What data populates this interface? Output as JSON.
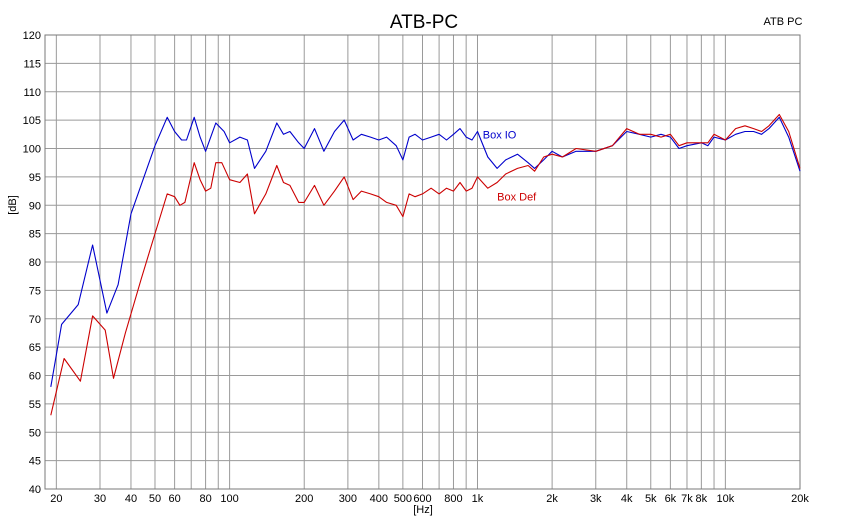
{
  "chart_data": {
    "type": "line",
    "title": "ATB-PC",
    "corner_label": "ATB PC",
    "xlabel": "[Hz]",
    "ylabel": "[dB]",
    "x_scale": "log",
    "xlim": [
      18,
      20000
    ],
    "ylim": [
      40,
      120
    ],
    "grid": true,
    "x_ticks": [
      {
        "v": 20,
        "label": "20"
      },
      {
        "v": 30,
        "label": "30"
      },
      {
        "v": 40,
        "label": "40"
      },
      {
        "v": 50,
        "label": "50"
      },
      {
        "v": 60,
        "label": "60"
      },
      {
        "v": 80,
        "label": "80"
      },
      {
        "v": 100,
        "label": "100"
      },
      {
        "v": 200,
        "label": "200"
      },
      {
        "v": 300,
        "label": "300"
      },
      {
        "v": 400,
        "label": "400"
      },
      {
        "v": 500,
        "label": "500"
      },
      {
        "v": 600,
        "label": "600"
      },
      {
        "v": 800,
        "label": "800"
      },
      {
        "v": 1000,
        "label": "1k"
      },
      {
        "v": 2000,
        "label": "2k"
      },
      {
        "v": 3000,
        "label": "3k"
      },
      {
        "v": 4000,
        "label": "4k"
      },
      {
        "v": 5000,
        "label": "5k"
      },
      {
        "v": 6000,
        "label": "6k"
      },
      {
        "v": 7000,
        "label": "7k"
      },
      {
        "v": 8000,
        "label": "8k"
      },
      {
        "v": 10000,
        "label": "10k"
      },
      {
        "v": 20000,
        "label": "20k"
      }
    ],
    "x_gridlines": [
      20,
      30,
      40,
      50,
      60,
      70,
      80,
      90,
      100,
      200,
      300,
      400,
      500,
      600,
      700,
      800,
      900,
      1000,
      2000,
      3000,
      4000,
      5000,
      6000,
      7000,
      8000,
      9000,
      10000,
      20000
    ],
    "y_ticks": [
      40,
      45,
      50,
      55,
      60,
      65,
      70,
      75,
      80,
      85,
      90,
      95,
      100,
      105,
      110,
      115,
      120
    ],
    "series": [
      {
        "name": "Box IO",
        "color": "#0000cc",
        "points": [
          [
            19,
            58
          ],
          [
            21,
            69
          ],
          [
            24.5,
            72.5
          ],
          [
            28,
            83
          ],
          [
            32,
            71
          ],
          [
            35.5,
            76
          ],
          [
            40,
            88.5
          ],
          [
            46,
            96
          ],
          [
            50,
            100.5
          ],
          [
            56,
            105.5
          ],
          [
            60,
            103
          ],
          [
            64,
            101.5
          ],
          [
            67,
            101.5
          ],
          [
            72,
            105.5
          ],
          [
            76,
            102
          ],
          [
            80,
            99.5
          ],
          [
            88,
            104.5
          ],
          [
            95,
            103
          ],
          [
            100,
            101
          ],
          [
            110,
            102
          ],
          [
            118,
            101.5
          ],
          [
            126,
            96.5
          ],
          [
            140,
            99.5
          ],
          [
            155,
            104.5
          ],
          [
            165,
            102.5
          ],
          [
            175,
            103
          ],
          [
            190,
            101
          ],
          [
            200,
            100
          ],
          [
            220,
            103.5
          ],
          [
            240,
            99.5
          ],
          [
            265,
            103
          ],
          [
            290,
            105
          ],
          [
            315,
            101.5
          ],
          [
            340,
            102.5
          ],
          [
            370,
            102
          ],
          [
            400,
            101.5
          ],
          [
            430,
            102
          ],
          [
            470,
            100.5
          ],
          [
            500,
            98
          ],
          [
            530,
            102
          ],
          [
            560,
            102.5
          ],
          [
            600,
            101.5
          ],
          [
            650,
            102
          ],
          [
            700,
            102.5
          ],
          [
            750,
            101.5
          ],
          [
            800,
            102.5
          ],
          [
            850,
            103.5
          ],
          [
            900,
            102
          ],
          [
            950,
            101.5
          ],
          [
            1000,
            103
          ],
          [
            1100,
            98.5
          ],
          [
            1200,
            96.5
          ],
          [
            1300,
            98
          ],
          [
            1450,
            99
          ],
          [
            1600,
            97.5
          ],
          [
            1700,
            96.5
          ],
          [
            1850,
            98
          ],
          [
            2000,
            99.5
          ],
          [
            2200,
            98.5
          ],
          [
            2500,
            99.5
          ],
          [
            3000,
            99.5
          ],
          [
            3500,
            100.5
          ],
          [
            4000,
            103
          ],
          [
            4500,
            102.5
          ],
          [
            5000,
            102
          ],
          [
            5500,
            102.5
          ],
          [
            6000,
            102
          ],
          [
            6500,
            100
          ],
          [
            7000,
            100.5
          ],
          [
            8000,
            101
          ],
          [
            8500,
            100.5
          ],
          [
            9000,
            102
          ],
          [
            10000,
            101.5
          ],
          [
            11000,
            102.5
          ],
          [
            12000,
            103
          ],
          [
            13000,
            103
          ],
          [
            14000,
            102.5
          ],
          [
            15000,
            103.5
          ],
          [
            16500,
            105.5
          ],
          [
            18000,
            102
          ],
          [
            20000,
            96
          ]
        ]
      },
      {
        "name": "Box Def",
        "color": "#cc0000",
        "points": [
          [
            19,
            53
          ],
          [
            21.5,
            63
          ],
          [
            25,
            59
          ],
          [
            28,
            70.5
          ],
          [
            31.5,
            68
          ],
          [
            34,
            59.5
          ],
          [
            38,
            67.5
          ],
          [
            44,
            77
          ],
          [
            50,
            85
          ],
          [
            56,
            92
          ],
          [
            60,
            91.5
          ],
          [
            63,
            90
          ],
          [
            66,
            90.5
          ],
          [
            72,
            97.5
          ],
          [
            76,
            94.5
          ],
          [
            80,
            92.5
          ],
          [
            84,
            93
          ],
          [
            88,
            97.5
          ],
          [
            93,
            97.5
          ],
          [
            100,
            94.5
          ],
          [
            110,
            94
          ],
          [
            118,
            95.5
          ],
          [
            126,
            88.5
          ],
          [
            140,
            92
          ],
          [
            155,
            97
          ],
          [
            165,
            94
          ],
          [
            175,
            93.5
          ],
          [
            190,
            90.5
          ],
          [
            200,
            90.5
          ],
          [
            220,
            93.5
          ],
          [
            240,
            90
          ],
          [
            265,
            92.5
          ],
          [
            290,
            95
          ],
          [
            315,
            91
          ],
          [
            340,
            92.5
          ],
          [
            370,
            92
          ],
          [
            400,
            91.5
          ],
          [
            430,
            90.5
          ],
          [
            470,
            90
          ],
          [
            500,
            88
          ],
          [
            530,
            92
          ],
          [
            560,
            91.5
          ],
          [
            600,
            92
          ],
          [
            650,
            93
          ],
          [
            700,
            92
          ],
          [
            750,
            93
          ],
          [
            800,
            92.5
          ],
          [
            850,
            94
          ],
          [
            900,
            92.5
          ],
          [
            950,
            93
          ],
          [
            1000,
            95
          ],
          [
            1100,
            93
          ],
          [
            1200,
            94
          ],
          [
            1300,
            95.5
          ],
          [
            1450,
            96.5
          ],
          [
            1600,
            97
          ],
          [
            1700,
            96
          ],
          [
            1850,
            98.5
          ],
          [
            2000,
            99
          ],
          [
            2200,
            98.5
          ],
          [
            2500,
            100
          ],
          [
            3000,
            99.5
          ],
          [
            3500,
            100.5
          ],
          [
            4000,
            103.5
          ],
          [
            4500,
            102.5
          ],
          [
            5000,
            102.5
          ],
          [
            5500,
            102
          ],
          [
            6000,
            102.5
          ],
          [
            6500,
            100.5
          ],
          [
            7000,
            101
          ],
          [
            8000,
            101
          ],
          [
            8500,
            101
          ],
          [
            9000,
            102.5
          ],
          [
            10000,
            101.5
          ],
          [
            11000,
            103.5
          ],
          [
            12000,
            104
          ],
          [
            13000,
            103.5
          ],
          [
            14000,
            103
          ],
          [
            15000,
            104
          ],
          [
            16500,
            106
          ],
          [
            18000,
            103
          ],
          [
            20000,
            96.5
          ]
        ]
      }
    ]
  }
}
